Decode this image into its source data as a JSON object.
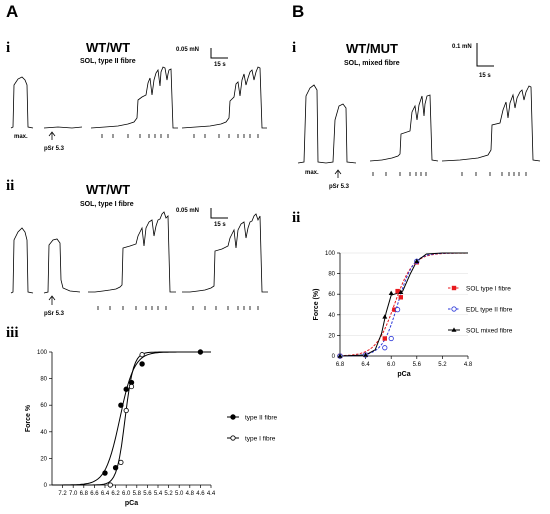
{
  "panels": {
    "A": {
      "letter": "A",
      "i": {
        "roman": "i",
        "title": "WT/WT",
        "subtitle": "SOL, type II fibre",
        "scale_force": "0.05 mN",
        "scale_time": "15 s",
        "max_label": "max.",
        "arrow_label": "pSr 5.3"
      },
      "ii": {
        "roman": "ii",
        "title": "WT/WT",
        "subtitle": "SOL, type I fibre",
        "scale_force": "0.05 mN",
        "scale_time": "15 s",
        "arrow_label": "pSr 5.3"
      },
      "iii": {
        "roman": "iii"
      }
    },
    "B": {
      "letter": "B",
      "i": {
        "roman": "i",
        "title": "WT/MUT",
        "subtitle": "SOL, mixed fibre",
        "scale_force": "0.1 mN",
        "scale_time": "15 s",
        "max_label": "max.",
        "arrow_label": "pSr 5.3"
      },
      "ii": {
        "roman": "ii"
      }
    }
  },
  "chart_data": [
    {
      "type": "scatter",
      "id": "A-iii",
      "xlabel": "pCa",
      "ylabel": "Force %",
      "xlim": [
        7.4,
        4.4
      ],
      "ylim": [
        0,
        100
      ],
      "x_ticks": [
        "7.2",
        "7.0",
        "6.8",
        "6.6",
        "6.4",
        "6.2",
        "6.0",
        "5.8",
        "5.6",
        "5.4",
        "5.2",
        "5.0",
        "4.8",
        "4.6",
        "4.4"
      ],
      "y_ticks": [
        "0",
        "20",
        "40",
        "60",
        "80",
        "100"
      ],
      "legend": "right",
      "series": [
        {
          "name": "type II fibre",
          "marker": "filled-circle",
          "x": [
            6.4,
            6.2,
            6.1,
            6.0,
            5.9,
            5.7,
            4.6
          ],
          "y": [
            9,
            13,
            60,
            72,
            77,
            91,
            100
          ]
        },
        {
          "name": "type I fibre",
          "marker": "open-circle",
          "x": [
            6.3,
            6.1,
            6.0,
            5.9,
            5.7
          ],
          "y": [
            0,
            17,
            56,
            74,
            98
          ]
        }
      ]
    },
    {
      "type": "scatter",
      "id": "B-ii",
      "xlabel": "pCa",
      "ylabel": "Force (%)",
      "xlim": [
        6.8,
        4.8
      ],
      "ylim": [
        0,
        100
      ],
      "x_ticks": [
        "6.8",
        "6.4",
        "6.0",
        "5.6",
        "5.2",
        "4.8"
      ],
      "y_ticks": [
        "0",
        "20",
        "40",
        "60",
        "80",
        "100"
      ],
      "legend": "right",
      "series": [
        {
          "name": "SOL type I fibre",
          "color": "#e8191d",
          "marker": "filled-square",
          "line": "dashed",
          "x": [
            6.8,
            6.4,
            6.1,
            5.95,
            5.9,
            5.85,
            5.6
          ],
          "y": [
            0,
            1,
            17,
            45,
            63,
            57,
            91
          ]
        },
        {
          "name": "EDL type II fibre",
          "color": "#2a36d8",
          "marker": "open-circle",
          "line": "dashed",
          "x": [
            6.8,
            6.4,
            6.1,
            6.0,
            5.9,
            5.6
          ],
          "y": [
            0,
            1,
            8,
            17,
            45,
            92
          ]
        },
        {
          "name": "SOL mixed fibre",
          "color": "#000000",
          "marker": "filled-triangle",
          "line": "solid",
          "x": [
            6.8,
            6.4,
            6.1,
            6.0,
            5.85,
            5.6
          ],
          "y": [
            0,
            1,
            38,
            61,
            62,
            92
          ]
        }
      ]
    }
  ]
}
